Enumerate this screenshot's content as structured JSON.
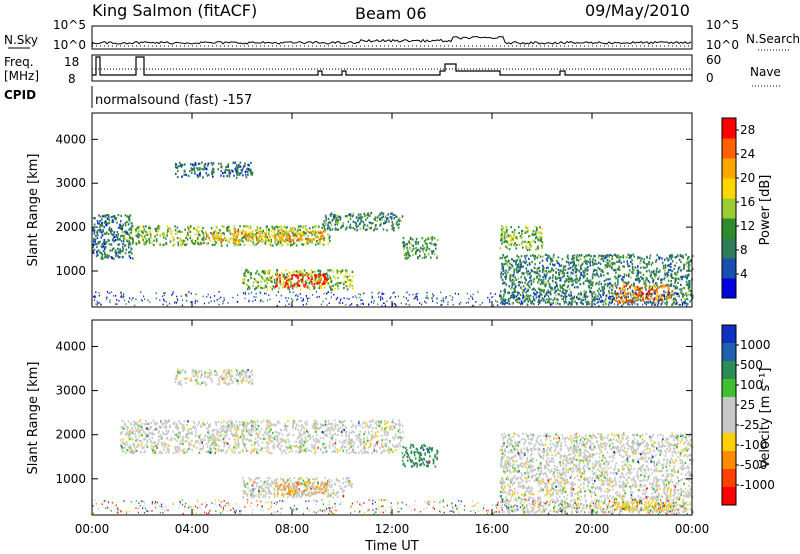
{
  "header": {
    "station": "King Salmon (fitACF)",
    "beam": "Beam 06",
    "date": "09/May/2010"
  },
  "strips": {
    "nsky_label": "N.Sky",
    "nsearch_label": "N.Search",
    "noise_ticks": [
      "10^5",
      "10^0"
    ],
    "freq_label_1": "Freq.",
    "freq_label_2": "[MHz]",
    "freq_ticks": [
      "18",
      "8"
    ],
    "nave_label": "Nave",
    "nave_ticks": [
      "60",
      "0"
    ],
    "cpid_label": "CPID",
    "cpid_text": "normalsound (fast) -157"
  },
  "colors": {
    "power": [
      "#0000e0",
      "#1a4fb0",
      "#2e7d58",
      "#2e8b2e",
      "#9acd32",
      "#ffd700",
      "#ffa500",
      "#ff6000",
      "#ff0000"
    ],
    "velocity": [
      "#1030c0",
      "#2060b0",
      "#2e8b57",
      "#40c030",
      "#c8c8c8",
      "#c8c8c8",
      "#ffd000",
      "#ff8c00",
      "#ff4000",
      "#ff0000"
    ]
  },
  "chart_data": [
    {
      "type": "heatmap",
      "name": "power-panel",
      "ylabel": "Slant Range [km]",
      "xlabel": "Time UT",
      "xticks": [
        "00:00",
        "04:00",
        "08:00",
        "12:00",
        "16:00",
        "20:00",
        "00:00"
      ],
      "xlim_hours": [
        0,
        24
      ],
      "yticks": [
        1000,
        2000,
        3000,
        4000
      ],
      "ylim": [
        180,
        4600
      ],
      "colorbar": {
        "label": "Power [dB]",
        "ticks": [
          4,
          8,
          12,
          16,
          20,
          24,
          28
        ],
        "range": [
          0,
          30
        ]
      },
      "regions": [
        {
          "t0": 3.3,
          "t1": 6.4,
          "r0": 3150,
          "r1": 3500,
          "level": 0.25
        },
        {
          "t0": 1.1,
          "t1": 9.5,
          "r0": 1600,
          "r1": 2050,
          "level": 0.45
        },
        {
          "t0": 4.5,
          "t1": 9.3,
          "r0": 1700,
          "r1": 1950,
          "level": 0.7
        },
        {
          "t0": 9.2,
          "t1": 12.4,
          "r0": 1950,
          "r1": 2350,
          "level": 0.3
        },
        {
          "t0": 6.0,
          "t1": 10.4,
          "r0": 600,
          "r1": 1050,
          "level": 0.45
        },
        {
          "t0": 7.3,
          "t1": 9.4,
          "r0": 650,
          "r1": 950,
          "level": 0.9
        },
        {
          "t0": 12.4,
          "t1": 13.8,
          "r0": 1300,
          "r1": 1800,
          "level": 0.35
        },
        {
          "t0": 16.3,
          "t1": 18.0,
          "r0": 1500,
          "r1": 2050,
          "level": 0.45
        },
        {
          "t0": 16.3,
          "t1": 24.0,
          "r0": 250,
          "r1": 1400,
          "level": 0.3
        },
        {
          "t0": 20.8,
          "t1": 23.2,
          "r0": 300,
          "r1": 700,
          "level": 0.8
        },
        {
          "t0": 0.0,
          "t1": 1.6,
          "r0": 1300,
          "r1": 2300,
          "level": 0.25
        }
      ]
    },
    {
      "type": "heatmap",
      "name": "velocity-panel",
      "ylabel": "Slant Range [km]",
      "xlabel": "Time UT",
      "xticks": [
        "00:00",
        "04:00",
        "08:00",
        "12:00",
        "16:00",
        "20:00",
        "00:00"
      ],
      "xlim_hours": [
        0,
        24
      ],
      "yticks": [
        1000,
        2000,
        3000,
        4000
      ],
      "ylim": [
        180,
        4600
      ],
      "colorbar": {
        "label": "Velocity [m s⁻¹]",
        "ticks": [
          "1000",
          "500",
          "100",
          "25",
          "-25",
          "-100",
          "-500",
          "-1000"
        ]
      },
      "regions": [
        {
          "t0": 3.3,
          "t1": 6.4,
          "r0": 3150,
          "r1": 3500,
          "vel": 0
        },
        {
          "t0": 1.1,
          "t1": 12.4,
          "r0": 1600,
          "r1": 2350,
          "vel": 0
        },
        {
          "t0": 12.4,
          "t1": 13.8,
          "r0": 1300,
          "r1": 1800,
          "vel": 150
        },
        {
          "t0": 7.3,
          "t1": 9.4,
          "r0": 650,
          "r1": 950,
          "vel": -150
        },
        {
          "t0": 6.0,
          "t1": 10.4,
          "r0": 600,
          "r1": 1050,
          "vel": 0
        },
        {
          "t0": 16.3,
          "t1": 24.0,
          "r0": 250,
          "r1": 2050,
          "vel": 0
        },
        {
          "t0": 20.8,
          "t1": 23.2,
          "r0": 300,
          "r1": 500,
          "vel": -50
        }
      ]
    }
  ]
}
